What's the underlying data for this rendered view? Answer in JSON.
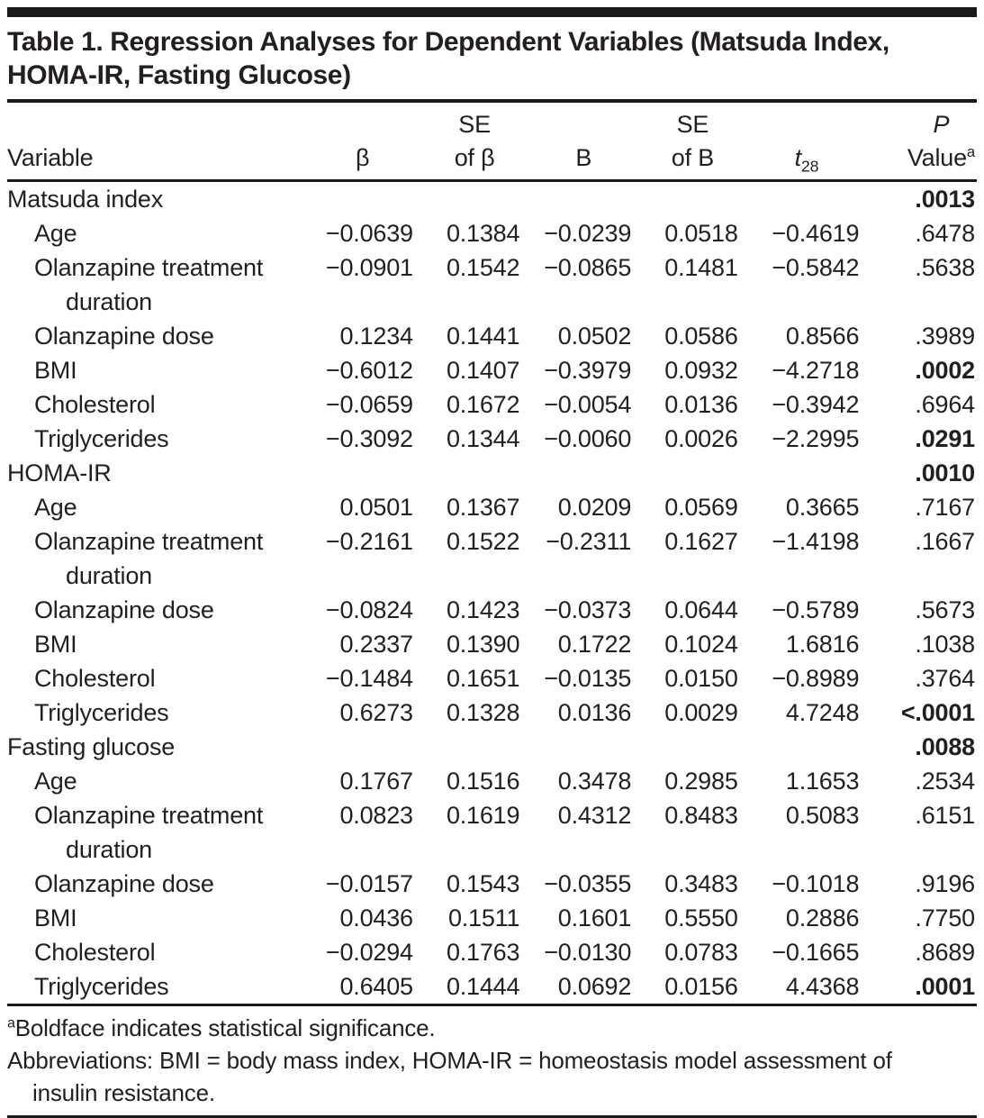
{
  "colors": {
    "text": "#231f20",
    "rule": "#1a1a1a",
    "background": "#ffffff"
  },
  "table": {
    "title": "Table 1. Regression Analyses for Dependent Variables (Matsuda Index, HOMA-IR, Fasting Glucose)",
    "header": {
      "variable": "Variable",
      "beta": "β",
      "se_beta_top": "SE",
      "se_beta_bottom": "of β",
      "b": "B",
      "se_b_top": "SE",
      "se_b_bottom": "of B",
      "t": "t",
      "t_sub": "28",
      "p": "P",
      "value": "Value",
      "value_sup": "a"
    },
    "sections": [
      {
        "label": "Matsuda index",
        "p_value": ".0013",
        "p_bold": true,
        "rows": [
          {
            "variable": "Age",
            "beta": "−0.0639",
            "se_beta": "0.1384",
            "b": "−0.0239",
            "se_b": "0.0518",
            "t28": "−0.4619",
            "p": ".6478",
            "p_bold": false
          },
          {
            "variable": "Olanzapine treatment duration",
            "beta": "−0.0901",
            "se_beta": "0.1542",
            "b": "−0.0865",
            "se_b": "0.1481",
            "t28": "−0.5842",
            "p": ".5638",
            "p_bold": false
          },
          {
            "variable": "Olanzapine dose",
            "beta": "0.1234",
            "se_beta": "0.1441",
            "b": "0.0502",
            "se_b": "0.0586",
            "t28": "0.8566",
            "p": ".3989",
            "p_bold": false
          },
          {
            "variable": "BMI",
            "beta": "−0.6012",
            "se_beta": "0.1407",
            "b": "−0.3979",
            "se_b": "0.0932",
            "t28": "−4.2718",
            "p": ".0002",
            "p_bold": true
          },
          {
            "variable": "Cholesterol",
            "beta": "−0.0659",
            "se_beta": "0.1672",
            "b": "−0.0054",
            "se_b": "0.0136",
            "t28": "−0.3942",
            "p": ".6964",
            "p_bold": false
          },
          {
            "variable": "Triglycerides",
            "beta": "−0.3092",
            "se_beta": "0.1344",
            "b": "−0.0060",
            "se_b": "0.0026",
            "t28": "−2.2995",
            "p": ".0291",
            "p_bold": true
          }
        ]
      },
      {
        "label": "HOMA-IR",
        "p_value": ".0010",
        "p_bold": true,
        "rows": [
          {
            "variable": "Age",
            "beta": "0.0501",
            "se_beta": "0.1367",
            "b": "0.0209",
            "se_b": "0.0569",
            "t28": "0.3665",
            "p": ".7167",
            "p_bold": false
          },
          {
            "variable": "Olanzapine treatment duration",
            "beta": "−0.2161",
            "se_beta": "0.1522",
            "b": "−0.2311",
            "se_b": "0.1627",
            "t28": "−1.4198",
            "p": ".1667",
            "p_bold": false
          },
          {
            "variable": "Olanzapine dose",
            "beta": "−0.0824",
            "se_beta": "0.1423",
            "b": "−0.0373",
            "se_b": "0.0644",
            "t28": "−0.5789",
            "p": ".5673",
            "p_bold": false
          },
          {
            "variable": "BMI",
            "beta": "0.2337",
            "se_beta": "0.1390",
            "b": "0.1722",
            "se_b": "0.1024",
            "t28": "1.6816",
            "p": ".1038",
            "p_bold": false
          },
          {
            "variable": "Cholesterol",
            "beta": "−0.1484",
            "se_beta": "0.1651",
            "b": "−0.0135",
            "se_b": "0.0150",
            "t28": "−0.8989",
            "p": ".3764",
            "p_bold": false
          },
          {
            "variable": "Triglycerides",
            "beta": "0.6273",
            "se_beta": "0.1328",
            "b": "0.0136",
            "se_b": "0.0029",
            "t28": "4.7248",
            "p": "<.0001",
            "p_bold": true
          }
        ]
      },
      {
        "label": "Fasting glucose",
        "p_value": ".0088",
        "p_bold": true,
        "rows": [
          {
            "variable": "Age",
            "beta": "0.1767",
            "se_beta": "0.1516",
            "b": "0.3478",
            "se_b": "0.2985",
            "t28": "1.1653",
            "p": ".2534",
            "p_bold": false
          },
          {
            "variable": "Olanzapine treatment duration",
            "beta": "0.0823",
            "se_beta": "0.1619",
            "b": "0.4312",
            "se_b": "0.8483",
            "t28": "0.5083",
            "p": ".6151",
            "p_bold": false
          },
          {
            "variable": "Olanzapine dose",
            "beta": "−0.0157",
            "se_beta": "0.1543",
            "b": "−0.0355",
            "se_b": "0.3483",
            "t28": "−0.1018",
            "p": ".9196",
            "p_bold": false
          },
          {
            "variable": "BMI",
            "beta": "0.0436",
            "se_beta": "0.1511",
            "b": "0.1601",
            "se_b": "0.5550",
            "t28": "0.2886",
            "p": ".7750",
            "p_bold": false
          },
          {
            "variable": "Cholesterol",
            "beta": "−0.0294",
            "se_beta": "0.1763",
            "b": "−0.0130",
            "se_b": "0.0783",
            "t28": "−0.1665",
            "p": ".8689",
            "p_bold": false
          },
          {
            "variable": "Triglycerides",
            "beta": "0.6405",
            "se_beta": "0.1444",
            "b": "0.0692",
            "se_b": "0.0156",
            "t28": "4.4368",
            "p": ".0001",
            "p_bold": true
          }
        ]
      }
    ],
    "footnotes": {
      "sig_sup": "a",
      "sig_text": "Boldface indicates statistical significance.",
      "abbrev_text": "Abbreviations: BMI = body mass index, HOMA-IR = homeostasis model assessment of insulin resistance."
    }
  }
}
